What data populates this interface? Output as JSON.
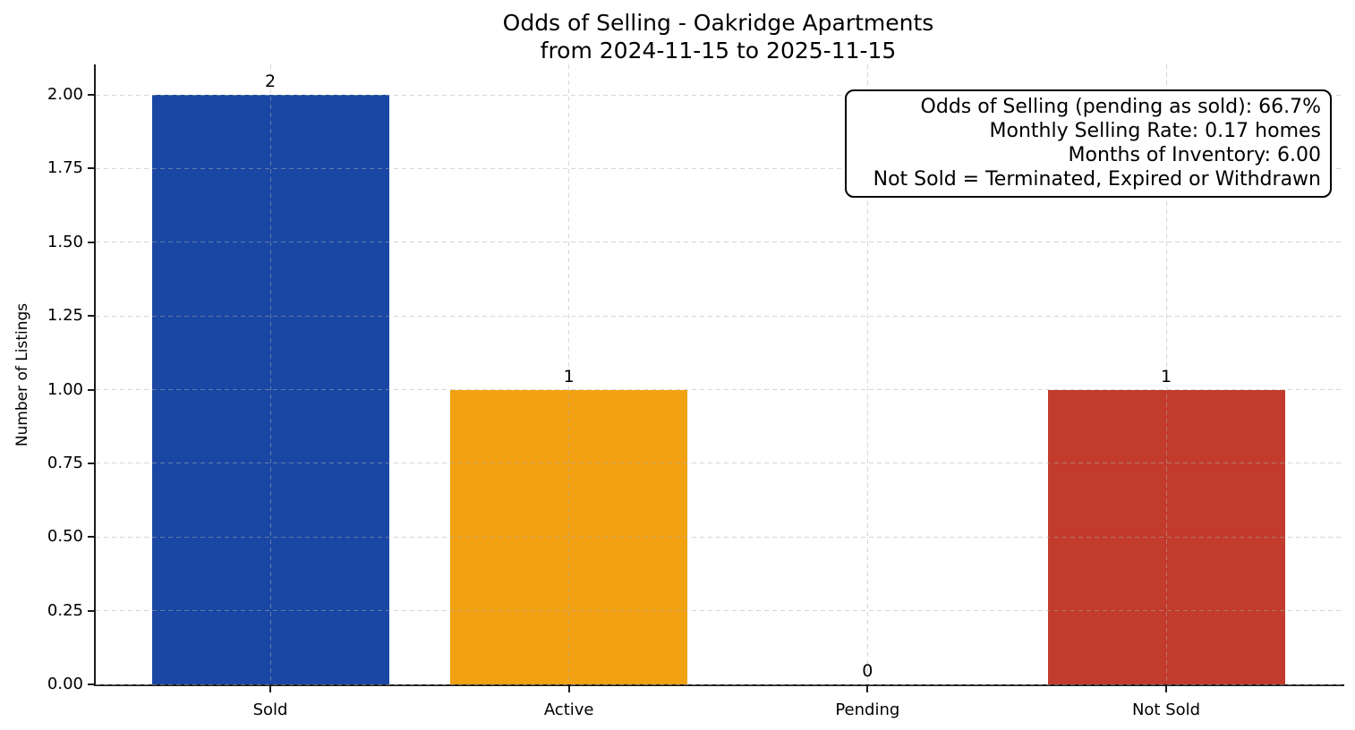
{
  "chart_data": {
    "type": "bar",
    "title_lines": [
      "Odds of Selling - Oakridge Apartments",
      "from 2024-11-15 to 2025-11-15"
    ],
    "ylabel": "Number of Listings",
    "xlabel": "",
    "categories": [
      "Sold",
      "Active",
      "Pending",
      "Not Sold"
    ],
    "values": [
      2,
      1,
      0,
      1
    ],
    "bar_value_labels": [
      "2",
      "1",
      "0",
      "1"
    ],
    "bar_colors": [
      "#1a47a3",
      "#f2a113",
      null,
      "#c23b2c"
    ],
    "ytick_labels": [
      "0.00",
      "0.25",
      "0.50",
      "0.75",
      "1.00",
      "1.25",
      "1.50",
      "1.75",
      "2.00"
    ],
    "ytick_values": [
      0,
      0.25,
      0.5,
      0.75,
      1.0,
      1.25,
      1.5,
      1.75,
      2.0
    ],
    "ylim": [
      0,
      2.1
    ],
    "grid": {
      "style": "dashed",
      "axes": "both"
    },
    "legend": "none",
    "annotation_box": {
      "align": "right",
      "lines": [
        "Odds of Selling (pending as sold): 66.7%",
        "Monthly Selling Rate: 0.17 homes",
        "Months of Inventory: 6.00",
        "Not Sold = Terminated, Expired or Withdrawn"
      ]
    },
    "colors": {
      "text": "#000000",
      "background": "#ffffff",
      "axis": "#1b1b1b"
    }
  }
}
